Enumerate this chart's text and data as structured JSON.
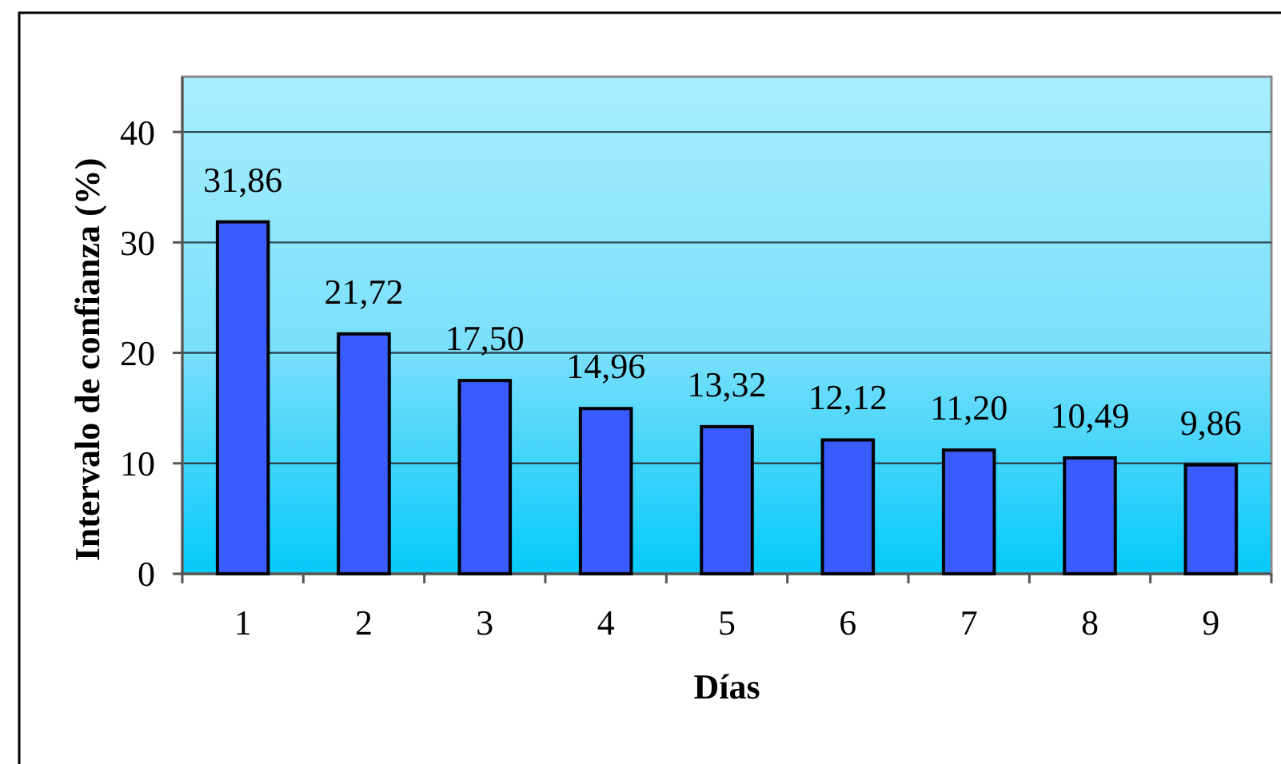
{
  "chart_data": {
    "type": "bar",
    "xlabel": "Días",
    "ylabel": "Intervalo de confianza (%)",
    "categories": [
      "1",
      "2",
      "3",
      "4",
      "5",
      "6",
      "7",
      "8",
      "9"
    ],
    "values": [
      31.86,
      21.72,
      17.5,
      14.96,
      13.32,
      12.12,
      11.2,
      10.49,
      9.86
    ],
    "value_labels": [
      "31,86",
      "21,72",
      "17,50",
      "14,96",
      "13,32",
      "12,12",
      "11,20",
      "10,49",
      "9,86"
    ],
    "color": "#3a5cff",
    "ylim": [
      0,
      45
    ],
    "yticks": [
      0,
      10,
      20,
      30,
      40
    ],
    "grid": "y"
  }
}
